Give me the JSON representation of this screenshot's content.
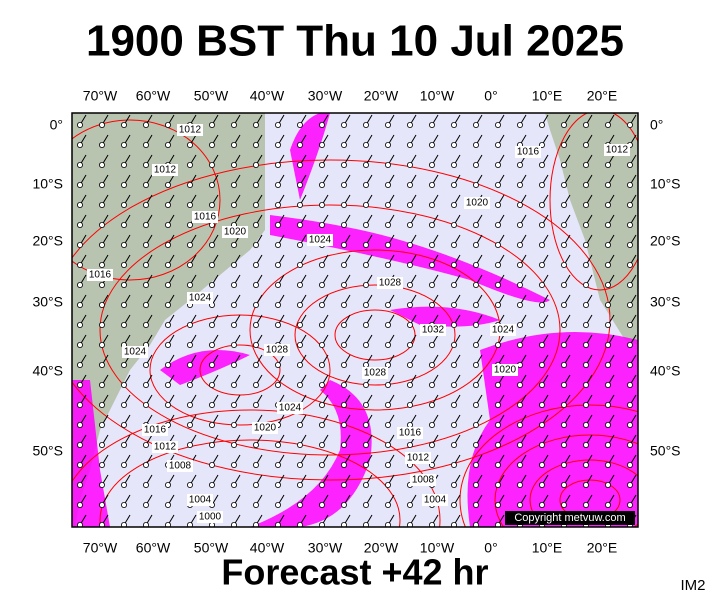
{
  "title": "1900 BST Thu 10 Jul 2025",
  "map": {
    "longitude_labels": [
      "70°W",
      "60°W",
      "50°W",
      "40°W",
      "30°W",
      "20°W",
      "10°W",
      "0°",
      "10°E",
      "20°E"
    ],
    "latitude_labels": [
      "0°",
      "10°S",
      "20°S",
      "30°S",
      "40°S",
      "50°S"
    ],
    "isobar_labels": [
      "1012",
      "1012",
      "1016",
      "1020",
      "1016",
      "1024",
      "1024",
      "1024",
      "1028",
      "1028",
      "1028",
      "1032",
      "1020",
      "1016",
      "1012",
      "1024",
      "1020",
      "1024",
      "1020",
      "1016",
      "1012",
      "1008",
      "1004",
      "1000",
      "1016",
      "1012",
      "1008",
      "1004"
    ],
    "copyright": "Copyright metvuw.com"
  },
  "footer": "Forecast +42 hr",
  "corner_label": "IM2"
}
